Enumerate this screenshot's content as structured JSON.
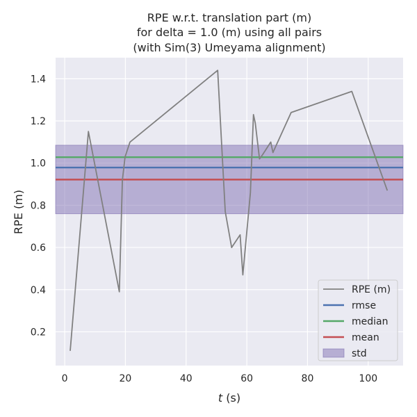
{
  "chart_data": {
    "type": "line",
    "title": [
      "RPE w.r.t. translation part (m)",
      "for delta = 1.0 (m) using all pairs",
      "(with Sim(3) Umeyama alignment)"
    ],
    "xlabel": "t (s)",
    "xlabel_italic_part": "t",
    "xlabel_rest": " (s)",
    "ylabel": "RPE (m)",
    "xlim": [
      -3,
      111.5
    ],
    "ylim": [
      0.04,
      1.5
    ],
    "xticks": [
      0,
      20,
      40,
      60,
      80,
      100
    ],
    "yticks": [
      0.2,
      0.4,
      0.6,
      0.8,
      1.0,
      1.2,
      1.4
    ],
    "xtick_labels": [
      "0",
      "20",
      "40",
      "60",
      "80",
      "100"
    ],
    "ytick_labels": [
      "0.2",
      "0.4",
      "0.6",
      "0.8",
      "1.0",
      "1.2",
      "1.4"
    ],
    "grid": true,
    "background": "#eaeaf2",
    "legend_position": "lower-right",
    "series": [
      {
        "name": "RPE (m)",
        "color": "#808080",
        "x": [
          1.8,
          7.8,
          18.0,
          19.0,
          19.9,
          21.5,
          50.4,
          52.9,
          55.0,
          57.8,
          58.7,
          61.2,
          62.2,
          62.8,
          63.2,
          64.2,
          65.2,
          67.9,
          68.6,
          74.6,
          94.6,
          106.3
        ],
        "y": [
          0.11,
          1.15,
          0.39,
          0.92,
          1.03,
          1.1,
          1.44,
          0.77,
          0.6,
          0.66,
          0.47,
          0.86,
          1.23,
          1.19,
          1.14,
          1.02,
          1.04,
          1.1,
          1.05,
          1.24,
          1.34,
          0.87
        ]
      }
    ],
    "stats": [
      {
        "name": "rmse",
        "value": 0.979,
        "color": "#4c72b0"
      },
      {
        "name": "median",
        "value": 1.028,
        "color": "#55a868"
      },
      {
        "name": "mean",
        "value": 0.922,
        "color": "#c44e52"
      }
    ],
    "std": {
      "name": "std",
      "lower": 0.76,
      "upper": 1.085,
      "color": "#8172b3"
    }
  }
}
